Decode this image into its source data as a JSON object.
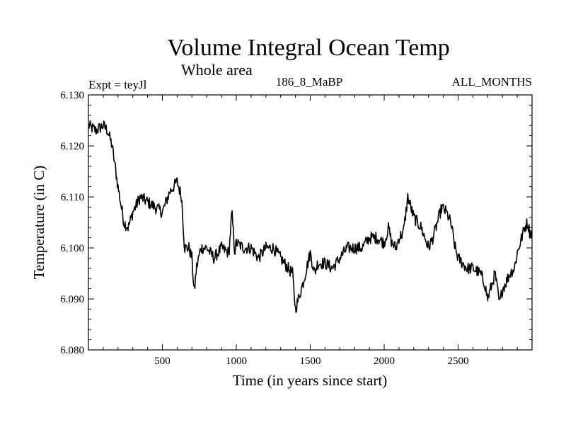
{
  "chart_data": {
    "type": "line",
    "title": "Volume Integral Ocean Temp",
    "subtitle": "Whole area",
    "expt_label": "Expt = teyJl",
    "run_label": "186_8_MaBP",
    "months_label": "ALL_MONTHS",
    "xlabel": "Time (in years since start)",
    "ylabel": "Temperature (in C)",
    "xlim": [
      0,
      3000
    ],
    "ylim": [
      6.08,
      6.13
    ],
    "x_ticks": [
      500,
      1000,
      1500,
      2000,
      2500
    ],
    "x_tick_labels": [
      "500",
      "1000",
      "1500",
      "2000",
      "2500"
    ],
    "y_ticks": [
      6.08,
      6.09,
      6.1,
      6.11,
      6.12,
      6.13
    ],
    "y_tick_labels": [
      "6.080",
      "6.090",
      "6.100",
      "6.110",
      "6.120",
      "6.130"
    ],
    "series": [
      {
        "name": "Volume Integral Ocean Temp",
        "color": "#000000",
        "x": [
          0,
          50,
          100,
          130,
          160,
          200,
          240,
          270,
          300,
          350,
          400,
          450,
          500,
          550,
          600,
          630,
          650,
          680,
          700,
          715,
          730,
          760,
          800,
          850,
          900,
          950,
          970,
          990,
          1000,
          1050,
          1100,
          1150,
          1200,
          1250,
          1300,
          1350,
          1380,
          1400,
          1420,
          1450,
          1500,
          1530,
          1550,
          1600,
          1650,
          1700,
          1750,
          1800,
          1850,
          1900,
          1950,
          2000,
          2030,
          2050,
          2080,
          2100,
          2130,
          2160,
          2200,
          2250,
          2300,
          2330,
          2360,
          2390,
          2420,
          2450,
          2480,
          2500,
          2530,
          2560,
          2600,
          2650,
          2680,
          2700,
          2730,
          2750,
          2780,
          2800,
          2820,
          2850,
          2880,
          2900,
          2920,
          2950,
          2970,
          2985,
          3000
        ],
        "values": [
          6.124,
          6.123,
          6.124,
          6.123,
          6.12,
          6.112,
          6.105,
          6.104,
          6.107,
          6.11,
          6.109,
          6.108,
          6.107,
          6.111,
          6.113,
          6.11,
          6.1,
          6.1,
          6.098,
          6.091,
          6.096,
          6.1,
          6.1,
          6.098,
          6.1,
          6.099,
          6.107,
          6.099,
          6.101,
          6.1,
          6.1,
          6.098,
          6.1,
          6.1,
          6.098,
          6.096,
          6.095,
          6.088,
          6.09,
          6.093,
          6.099,
          6.095,
          6.097,
          6.097,
          6.096,
          6.098,
          6.1,
          6.1,
          6.1,
          6.102,
          6.102,
          6.101,
          6.104,
          6.101,
          6.1,
          6.102,
          6.103,
          6.11,
          6.106,
          6.104,
          6.1,
          6.102,
          6.105,
          6.108,
          6.107,
          6.105,
          6.1,
          6.098,
          6.097,
          6.096,
          6.096,
          6.095,
          6.093,
          6.09,
          6.093,
          6.095,
          6.089,
          6.092,
          6.093,
          6.095,
          6.096,
          6.099,
          6.101,
          6.104,
          6.105,
          6.103,
          6.103
        ]
      }
    ]
  }
}
